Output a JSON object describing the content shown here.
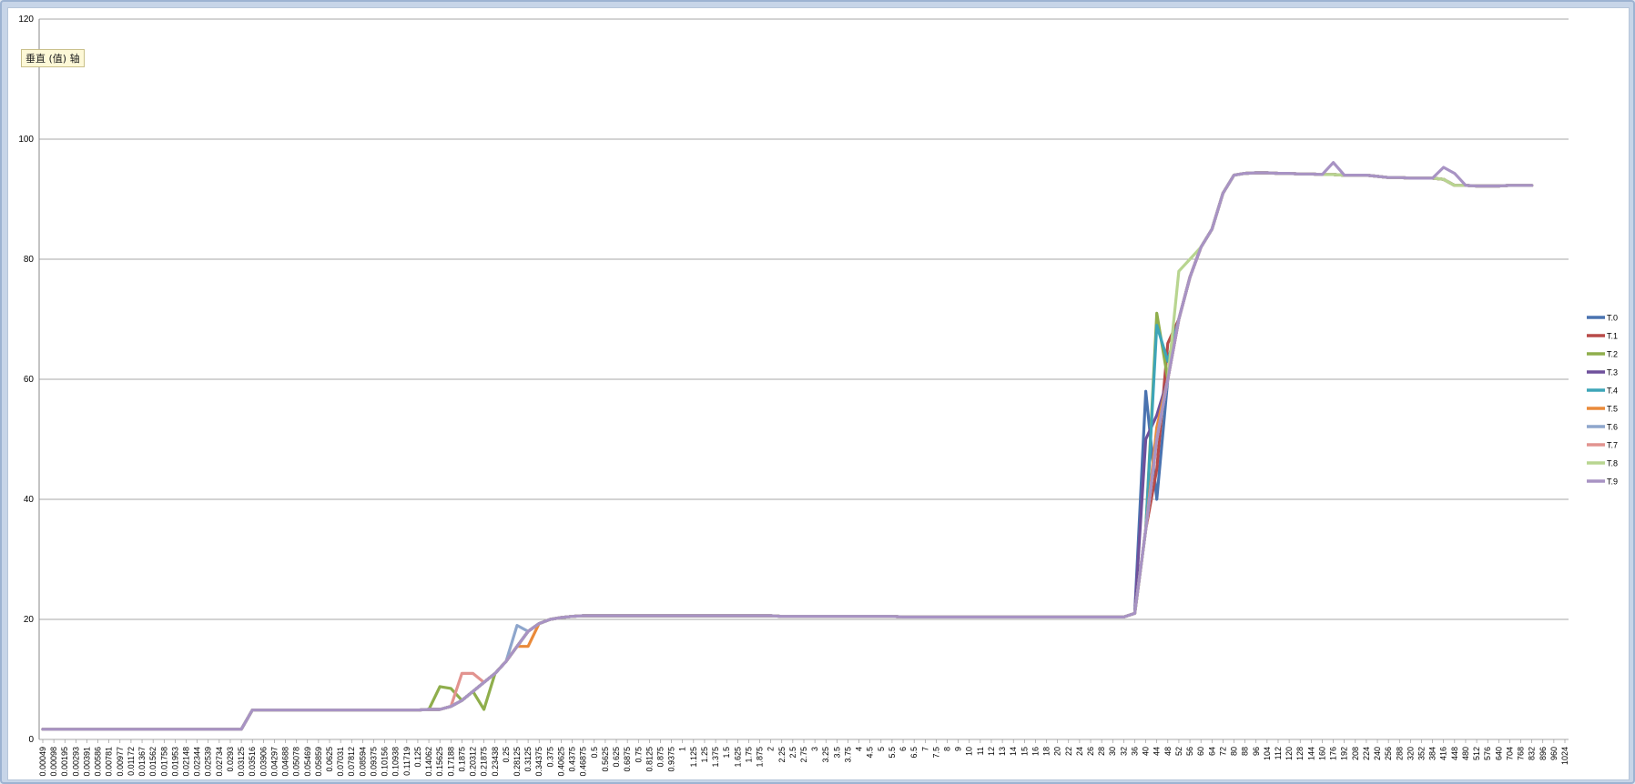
{
  "tooltip": "垂直 (值) 轴",
  "colors": [
    "#4a73b0",
    "#b84a48",
    "#8fae4c",
    "#6f509c",
    "#3ea5b8",
    "#ea8a3a",
    "#8ea6cc",
    "#e2938f",
    "#b8d590",
    "#a893c4"
  ],
  "chart_data": {
    "type": "line",
    "title": "",
    "xlabel": "",
    "ylabel": "",
    "ylim": [
      0,
      120
    ],
    "yticks": [
      0,
      20,
      40,
      60,
      80,
      100,
      120
    ],
    "grid": true,
    "legend_position": "right",
    "categories": [
      "0.00049",
      "0.00098",
      "0.00195",
      "0.00293",
      "0.00391",
      "0.00586",
      "0.00781",
      "0.00977",
      "0.01172",
      "0.01367",
      "0.01562",
      "0.01758",
      "0.01953",
      "0.02148",
      "0.02344",
      "0.02539",
      "0.02734",
      "0.0293",
      "0.03125",
      "0.03516",
      "0.03906",
      "0.04297",
      "0.04688",
      "0.05078",
      "0.05469",
      "0.05859",
      "0.0625",
      "0.07031",
      "0.07812",
      "0.08594",
      "0.09375",
      "0.10156",
      "0.10938",
      "0.11719",
      "0.125",
      "0.14062",
      "0.15625",
      "0.17188",
      "0.1875",
      "0.20312",
      "0.21875",
      "0.23438",
      "0.25",
      "0.28125",
      "0.3125",
      "0.34375",
      "0.375",
      "0.40625",
      "0.4375",
      "0.46875",
      "0.5",
      "0.5625",
      "0.625",
      "0.6875",
      "0.75",
      "0.8125",
      "0.875",
      "0.9375",
      "1",
      "1.125",
      "1.25",
      "1.375",
      "1.5",
      "1.625",
      "1.75",
      "1.875",
      "2",
      "2.25",
      "2.5",
      "2.75",
      "3",
      "3.25",
      "3.5",
      "3.75",
      "4",
      "4.5",
      "5",
      "5.5",
      "6",
      "6.5",
      "7",
      "7.5",
      "8",
      "9",
      "10",
      "11",
      "12",
      "13",
      "14",
      "15",
      "16",
      "18",
      "20",
      "22",
      "24",
      "26",
      "28",
      "30",
      "32",
      "36",
      "40",
      "44",
      "48",
      "52",
      "56",
      "60",
      "64",
      "72",
      "80",
      "88",
      "96",
      "104",
      "112",
      "120",
      "128",
      "144",
      "160",
      "176",
      "192",
      "208",
      "224",
      "240",
      "256",
      "288",
      "320",
      "352",
      "384",
      "416",
      "448",
      "480",
      "512",
      "576",
      "640",
      "704",
      "768",
      "832",
      "896",
      "960",
      "1024"
    ],
    "base_values": [
      1.7,
      1.7,
      1.7,
      1.7,
      1.7,
      1.7,
      1.7,
      1.7,
      1.7,
      1.7,
      1.7,
      1.7,
      1.7,
      1.7,
      1.7,
      1.7,
      1.7,
      1.7,
      1.7,
      4.9,
      4.9,
      4.9,
      4.9,
      4.9,
      4.9,
      4.9,
      4.9,
      4.9,
      4.9,
      4.9,
      4.9,
      4.9,
      4.9,
      4.9,
      4.9,
      5,
      5,
      5.5,
      6.5,
      8,
      9.5,
      11,
      13,
      15.5,
      18,
      19.3,
      20,
      20.3,
      20.5,
      20.6,
      20.6,
      20.6,
      20.6,
      20.6,
      20.6,
      20.6,
      20.6,
      20.6,
      20.6,
      20.6,
      20.6,
      20.6,
      20.6,
      20.6,
      20.6,
      20.6,
      20.6,
      20.5,
      20.5,
      20.5,
      20.5,
      20.5,
      20.5,
      20.5,
      20.5,
      20.5,
      20.5,
      20.5,
      20.4,
      20.4,
      20.4,
      20.4,
      20.4,
      20.4,
      20.4,
      20.4,
      20.4,
      20.4,
      20.4,
      20.4,
      20.4,
      20.4,
      20.4,
      20.4,
      20.4,
      20.4,
      20.4,
      20.4,
      20.4,
      21,
      35,
      50,
      60,
      70,
      77,
      82,
      85,
      91,
      94,
      94.3,
      94.4,
      94.4,
      94.3,
      94.3,
      94.2,
      94.2,
      94.1,
      94.1,
      94,
      94,
      94,
      93.8,
      93.6,
      93.6,
      93.5,
      93.5,
      93.5,
      93.3,
      92.3,
      92.3,
      92.2,
      92.2,
      92.2,
      92.3,
      92.3,
      92.3
    ],
    "series": [
      {
        "name": "T.0",
        "offsets": {
          "100": 23,
          "101": -10
        }
      },
      {
        "name": "T.1",
        "offsets": {
          "101": -5,
          "102": 6
        }
      },
      {
        "name": "T.2",
        "offsets": {
          "36": 3.8,
          "37": 3,
          "40": -4.5,
          "101": 21
        }
      },
      {
        "name": "T.3",
        "offsets": {
          "100": 15,
          "101": 4
        }
      },
      {
        "name": "T.4",
        "offsets": {
          "101": 19,
          "102": 3
        }
      },
      {
        "name": "T.5",
        "offsets": {
          "44": -2.5,
          "101": 2
        }
      },
      {
        "name": "T.6",
        "offsets": {
          "43": 3.5
        }
      },
      {
        "name": "T.7",
        "offsets": {
          "38": 4.5,
          "39": 3
        }
      },
      {
        "name": "T.8",
        "offsets": {
          "103": 8,
          "104": 3
        }
      },
      {
        "name": "T.9",
        "offsets": {
          "117": 2,
          "127": 2,
          "128": 2
        }
      }
    ]
  }
}
